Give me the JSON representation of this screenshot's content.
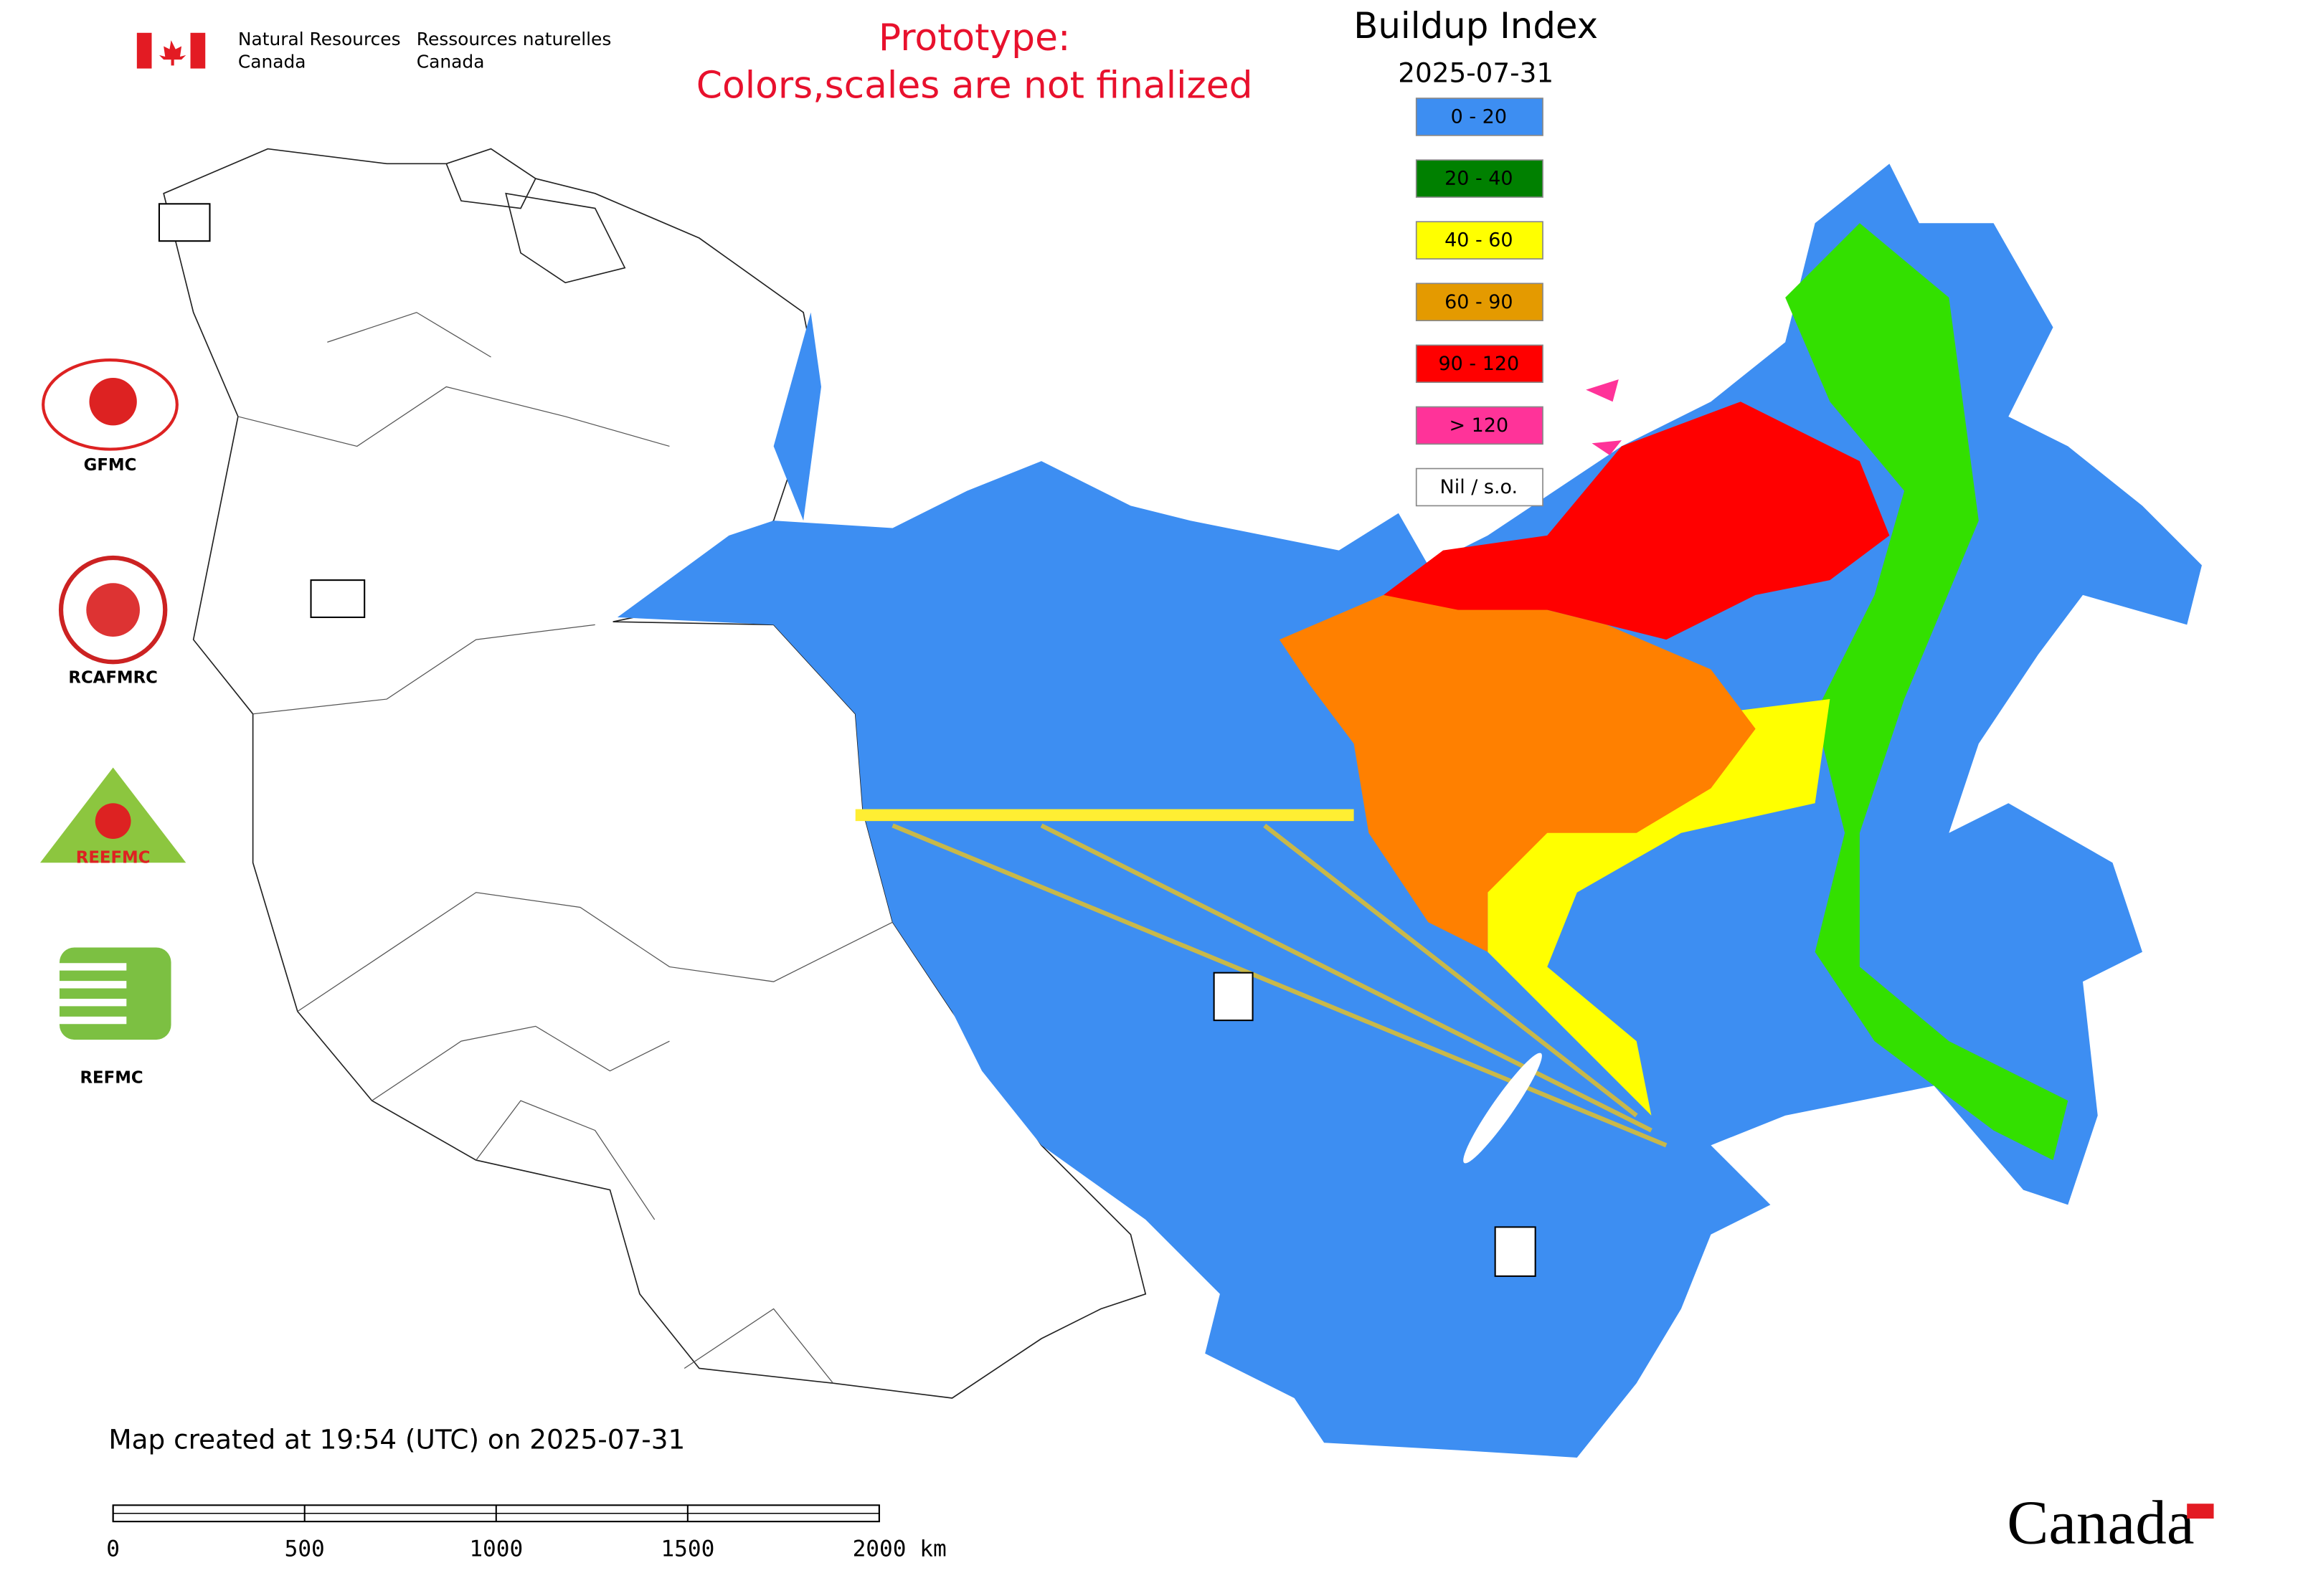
{
  "header": {
    "agency_en": [
      "Natural Resources",
      "Canada"
    ],
    "agency_fr": [
      "Ressources naturelles",
      "Canada"
    ],
    "notice": [
      "Prototype:",
      "Colors,scales are not finalized"
    ]
  },
  "legend": {
    "title": "Buildup Index",
    "date": "2025-07-31",
    "items": [
      {
        "label": "0 - 20",
        "color": "#3d8ef2"
      },
      {
        "label": "20 - 40",
        "color": "#008000"
      },
      {
        "label": "40 - 60",
        "color": "#ffff00"
      },
      {
        "label": "60 - 90",
        "color": "#e49a00"
      },
      {
        "label": "90 - 120",
        "color": "#ff0000"
      },
      {
        "label": "> 120",
        "color": "#ff3399"
      },
      {
        "label": "Nil / s.o.",
        "color": "#ffffff"
      }
    ]
  },
  "logos": [
    "GFMC",
    "RCAFMRC",
    "REEFMC",
    "REFMC"
  ],
  "footer": {
    "created": "Map created at 19:54 (UTC) on 2025-07-31",
    "wordmark": "Canada"
  },
  "scale_bar": {
    "labels": [
      "0",
      "500",
      "1000",
      "1500",
      "2000 km"
    ]
  }
}
